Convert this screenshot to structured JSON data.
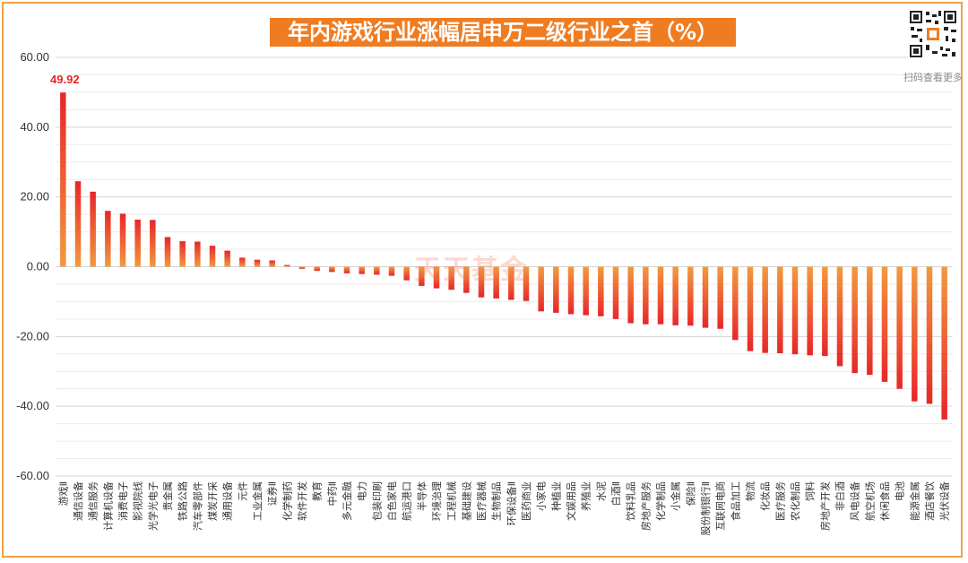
{
  "title": "年内游戏行业涨幅居申万二级行业之首（%）",
  "qr_caption": "扫码查看更多",
  "watermark": "天天基金",
  "colors": {
    "bar_top": "#e8262a",
    "bar_bottom": "#f29a3e",
    "title_bg": "#f07c22",
    "label": "#e8262a"
  },
  "chart_data": {
    "type": "bar",
    "title": "年内游戏行业涨幅居申万二级行业之首（%）",
    "xlabel": "",
    "ylabel": "",
    "ylim": [
      -60,
      60
    ],
    "yticks": [
      60,
      40,
      20,
      0,
      -20,
      -40,
      -60
    ],
    "ytick_labels": [
      "60.00",
      "40.00",
      "20.00",
      "0.00",
      "-20.00",
      "-40.00",
      "-60.00"
    ],
    "grid": true,
    "categories": [
      "游戏Ⅱ",
      "通信设备",
      "通信服务",
      "计算机设备",
      "消费电子",
      "影视院线",
      "光学光电子",
      "贵金属",
      "铁路公路",
      "汽车零部件",
      "煤炭开采",
      "通用设备",
      "元件",
      "工业金属",
      "证券Ⅱ",
      "化学制药",
      "软件开发",
      "教育",
      "中药Ⅱ",
      "多元金融",
      "电力",
      "包装印刷",
      "白色家电",
      "航运港口",
      "半导体",
      "环境治理",
      "工程机械",
      "基础建设",
      "医疗器械",
      "生物制品",
      "环保设备Ⅱ",
      "医药商业",
      "小家电",
      "种植业",
      "文娱用品",
      "养殖业",
      "水泥",
      "白酒Ⅱ",
      "饮料乳品",
      "房地产服务",
      "化学制品",
      "小金属",
      "保险Ⅱ",
      "股份制银行Ⅱ",
      "互联网电商",
      "食品加工",
      "物流",
      "化妆品",
      "医疗服务",
      "农化制品",
      "饲料",
      "房地产开发",
      "非白酒",
      "风电设备",
      "航空机场",
      "休闲食品",
      "电池",
      "能源金属",
      "酒店餐饮",
      "光伏设备"
    ],
    "values": [
      49.92,
      24.5,
      21.5,
      16,
      15.2,
      13.5,
      13.4,
      8.5,
      7.3,
      7.2,
      6,
      4.6,
      2.6,
      2,
      1.8,
      0.5,
      -0.6,
      -1.2,
      -1.5,
      -1.9,
      -2.1,
      -2.3,
      -2.6,
      -3.9,
      -5.5,
      -6.2,
      -6.6,
      -7.5,
      -8.8,
      -9.1,
      -9.5,
      -9.8,
      -12.8,
      -13.2,
      -13.6,
      -13.9,
      -14.2,
      -15,
      -16.2,
      -16.5,
      -16.5,
      -16.8,
      -16.9,
      -17.5,
      -17.8,
      -21,
      -24.2,
      -24.7,
      -24.8,
      -25.1,
      -25.4,
      -25.6,
      -28.5,
      -30.5,
      -31,
      -33,
      -35,
      -38.6,
      -39.3,
      -43.8
    ],
    "data_labels": [
      {
        "category": "游戏Ⅱ",
        "text": "49.92"
      }
    ]
  }
}
